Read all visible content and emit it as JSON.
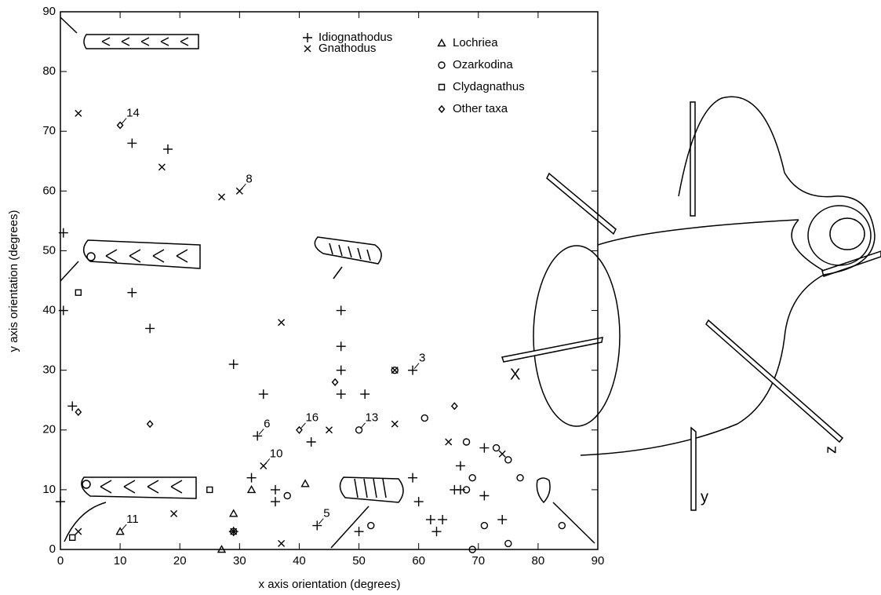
{
  "chart_data": {
    "type": "scatter",
    "xlabel": "x axis orientation (degrees)",
    "ylabel": "y axis orientation (degrees)",
    "xlim": [
      0,
      90
    ],
    "ylim": [
      0,
      90
    ],
    "xticks": [
      0,
      10,
      20,
      30,
      40,
      50,
      60,
      70,
      80,
      90
    ],
    "yticks": [
      0,
      10,
      20,
      30,
      40,
      50,
      60,
      70,
      80,
      90
    ],
    "color": "#000000",
    "legend": "top-right",
    "series": [
      {
        "name": "Idiognathodus",
        "marker": "plus",
        "x": [
          0.5,
          0.5,
          0,
          2,
          12,
          18,
          12,
          15,
          29,
          34,
          33,
          32,
          36,
          36,
          43,
          47,
          47,
          47,
          47,
          51,
          42,
          59,
          59,
          60,
          62,
          64,
          63,
          67,
          66,
          67,
          71,
          71,
          74,
          50,
          29
        ],
        "values": [
          53,
          40,
          8,
          24,
          68,
          67,
          43,
          37,
          31,
          26,
          19,
          12,
          10,
          8,
          4,
          40,
          34,
          30,
          26,
          26,
          18,
          30,
          12,
          8,
          5,
          5,
          3,
          14,
          10,
          10,
          17,
          9,
          5,
          3,
          3
        ]
      },
      {
        "name": "Gnathodus",
        "marker": "cross",
        "x": [
          3,
          3,
          17,
          27,
          30,
          37,
          19,
          34,
          37,
          45,
          56,
          65,
          74,
          56,
          29
        ],
        "values": [
          73,
          3,
          64,
          59,
          60,
          38,
          6,
          14,
          1,
          20,
          21,
          18,
          16,
          30,
          3
        ]
      },
      {
        "name": "Lochriea",
        "marker": "triangle",
        "x": [
          10,
          29,
          32,
          41,
          27
        ],
        "values": [
          3,
          6,
          10,
          11,
          0
        ]
      },
      {
        "name": "Ozarkodina",
        "marker": "circle",
        "x": [
          38,
          52,
          50,
          61,
          68,
          69,
          68,
          73,
          75,
          77,
          71,
          75,
          84,
          69,
          56,
          29
        ],
        "values": [
          9,
          4,
          20,
          22,
          18,
          12,
          10,
          17,
          15,
          12,
          4,
          1,
          4,
          0,
          30,
          3
        ]
      },
      {
        "name": "Clydagnathus",
        "marker": "square",
        "x": [
          3,
          2,
          25
        ],
        "values": [
          43,
          2,
          10
        ]
      },
      {
        "name": "Other taxa",
        "marker": "diamond",
        "x": [
          10,
          3,
          15,
          40,
          46,
          66
        ],
        "values": [
          71,
          23,
          21,
          20,
          28,
          24
        ]
      }
    ],
    "annotations": [
      "14",
      "8",
      "3",
      "6",
      "16",
      "13",
      "10",
      "11",
      "5"
    ],
    "diagram_labels": [
      "X",
      "y",
      "z"
    ]
  }
}
